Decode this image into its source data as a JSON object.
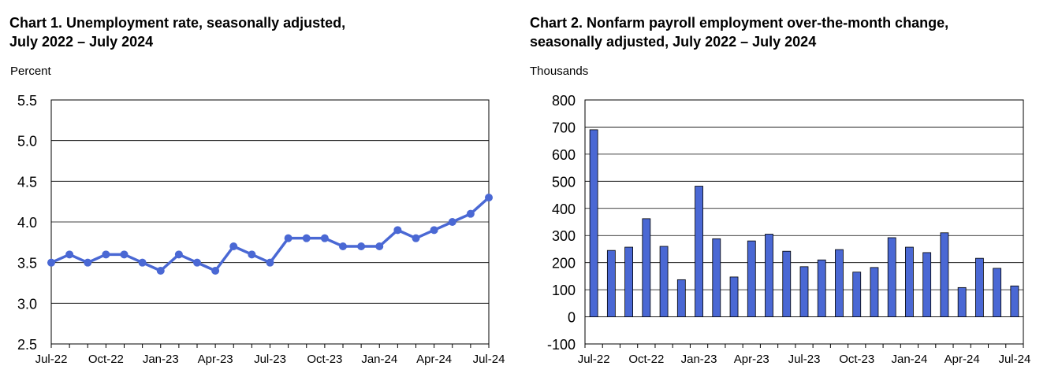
{
  "chart_data": [
    {
      "type": "line",
      "title": [
        "Chart 1. Unemployment rate, seasonally adjusted,",
        "July 2022 – July 2024"
      ],
      "ylabel": "Percent",
      "ylim": [
        2.5,
        5.5
      ],
      "yticks": [
        "2.5",
        "3.0",
        "3.5",
        "4.0",
        "4.5",
        "5.0",
        "5.5"
      ],
      "xtick_labels": [
        "Jul-22",
        "Oct-22",
        "Jan-23",
        "Apr-23",
        "Jul-23",
        "Oct-23",
        "Jan-24",
        "Apr-24",
        "Jul-24"
      ],
      "grid": true,
      "color": "#4a68d4",
      "series": [
        {
          "values": [
            3.5,
            3.6,
            3.5,
            3.6,
            3.6,
            3.5,
            3.4,
            3.6,
            3.5,
            3.4,
            3.7,
            3.6,
            3.5,
            3.8,
            3.8,
            3.8,
            3.7,
            3.7,
            3.7,
            3.9,
            3.8,
            3.9,
            4.0,
            4.1,
            4.3
          ]
        }
      ]
    },
    {
      "type": "bar",
      "title": [
        "Chart 2. Nonfarm payroll employment over-the-month change,",
        "seasonally adjusted, July 2022 – July 2024"
      ],
      "ylabel": "Thousands",
      "ylim": [
        -100,
        800
      ],
      "yticks": [
        "-100",
        "0",
        "100",
        "200",
        "300",
        "400",
        "500",
        "600",
        "700",
        "800"
      ],
      "xtick_labels": [
        "Jul-22",
        "Oct-22",
        "Jan-23",
        "Apr-23",
        "Jul-23",
        "Oct-23",
        "Jan-24",
        "Apr-24",
        "Jul-24"
      ],
      "grid": true,
      "color": "#4a68d4",
      "series": [
        {
          "values": [
            690,
            245,
            257,
            362,
            260,
            137,
            482,
            288,
            147,
            280,
            305,
            242,
            185,
            210,
            248,
            165,
            182,
            292,
            257,
            237,
            310,
            108,
            216,
            179,
            114
          ]
        }
      ]
    }
  ]
}
